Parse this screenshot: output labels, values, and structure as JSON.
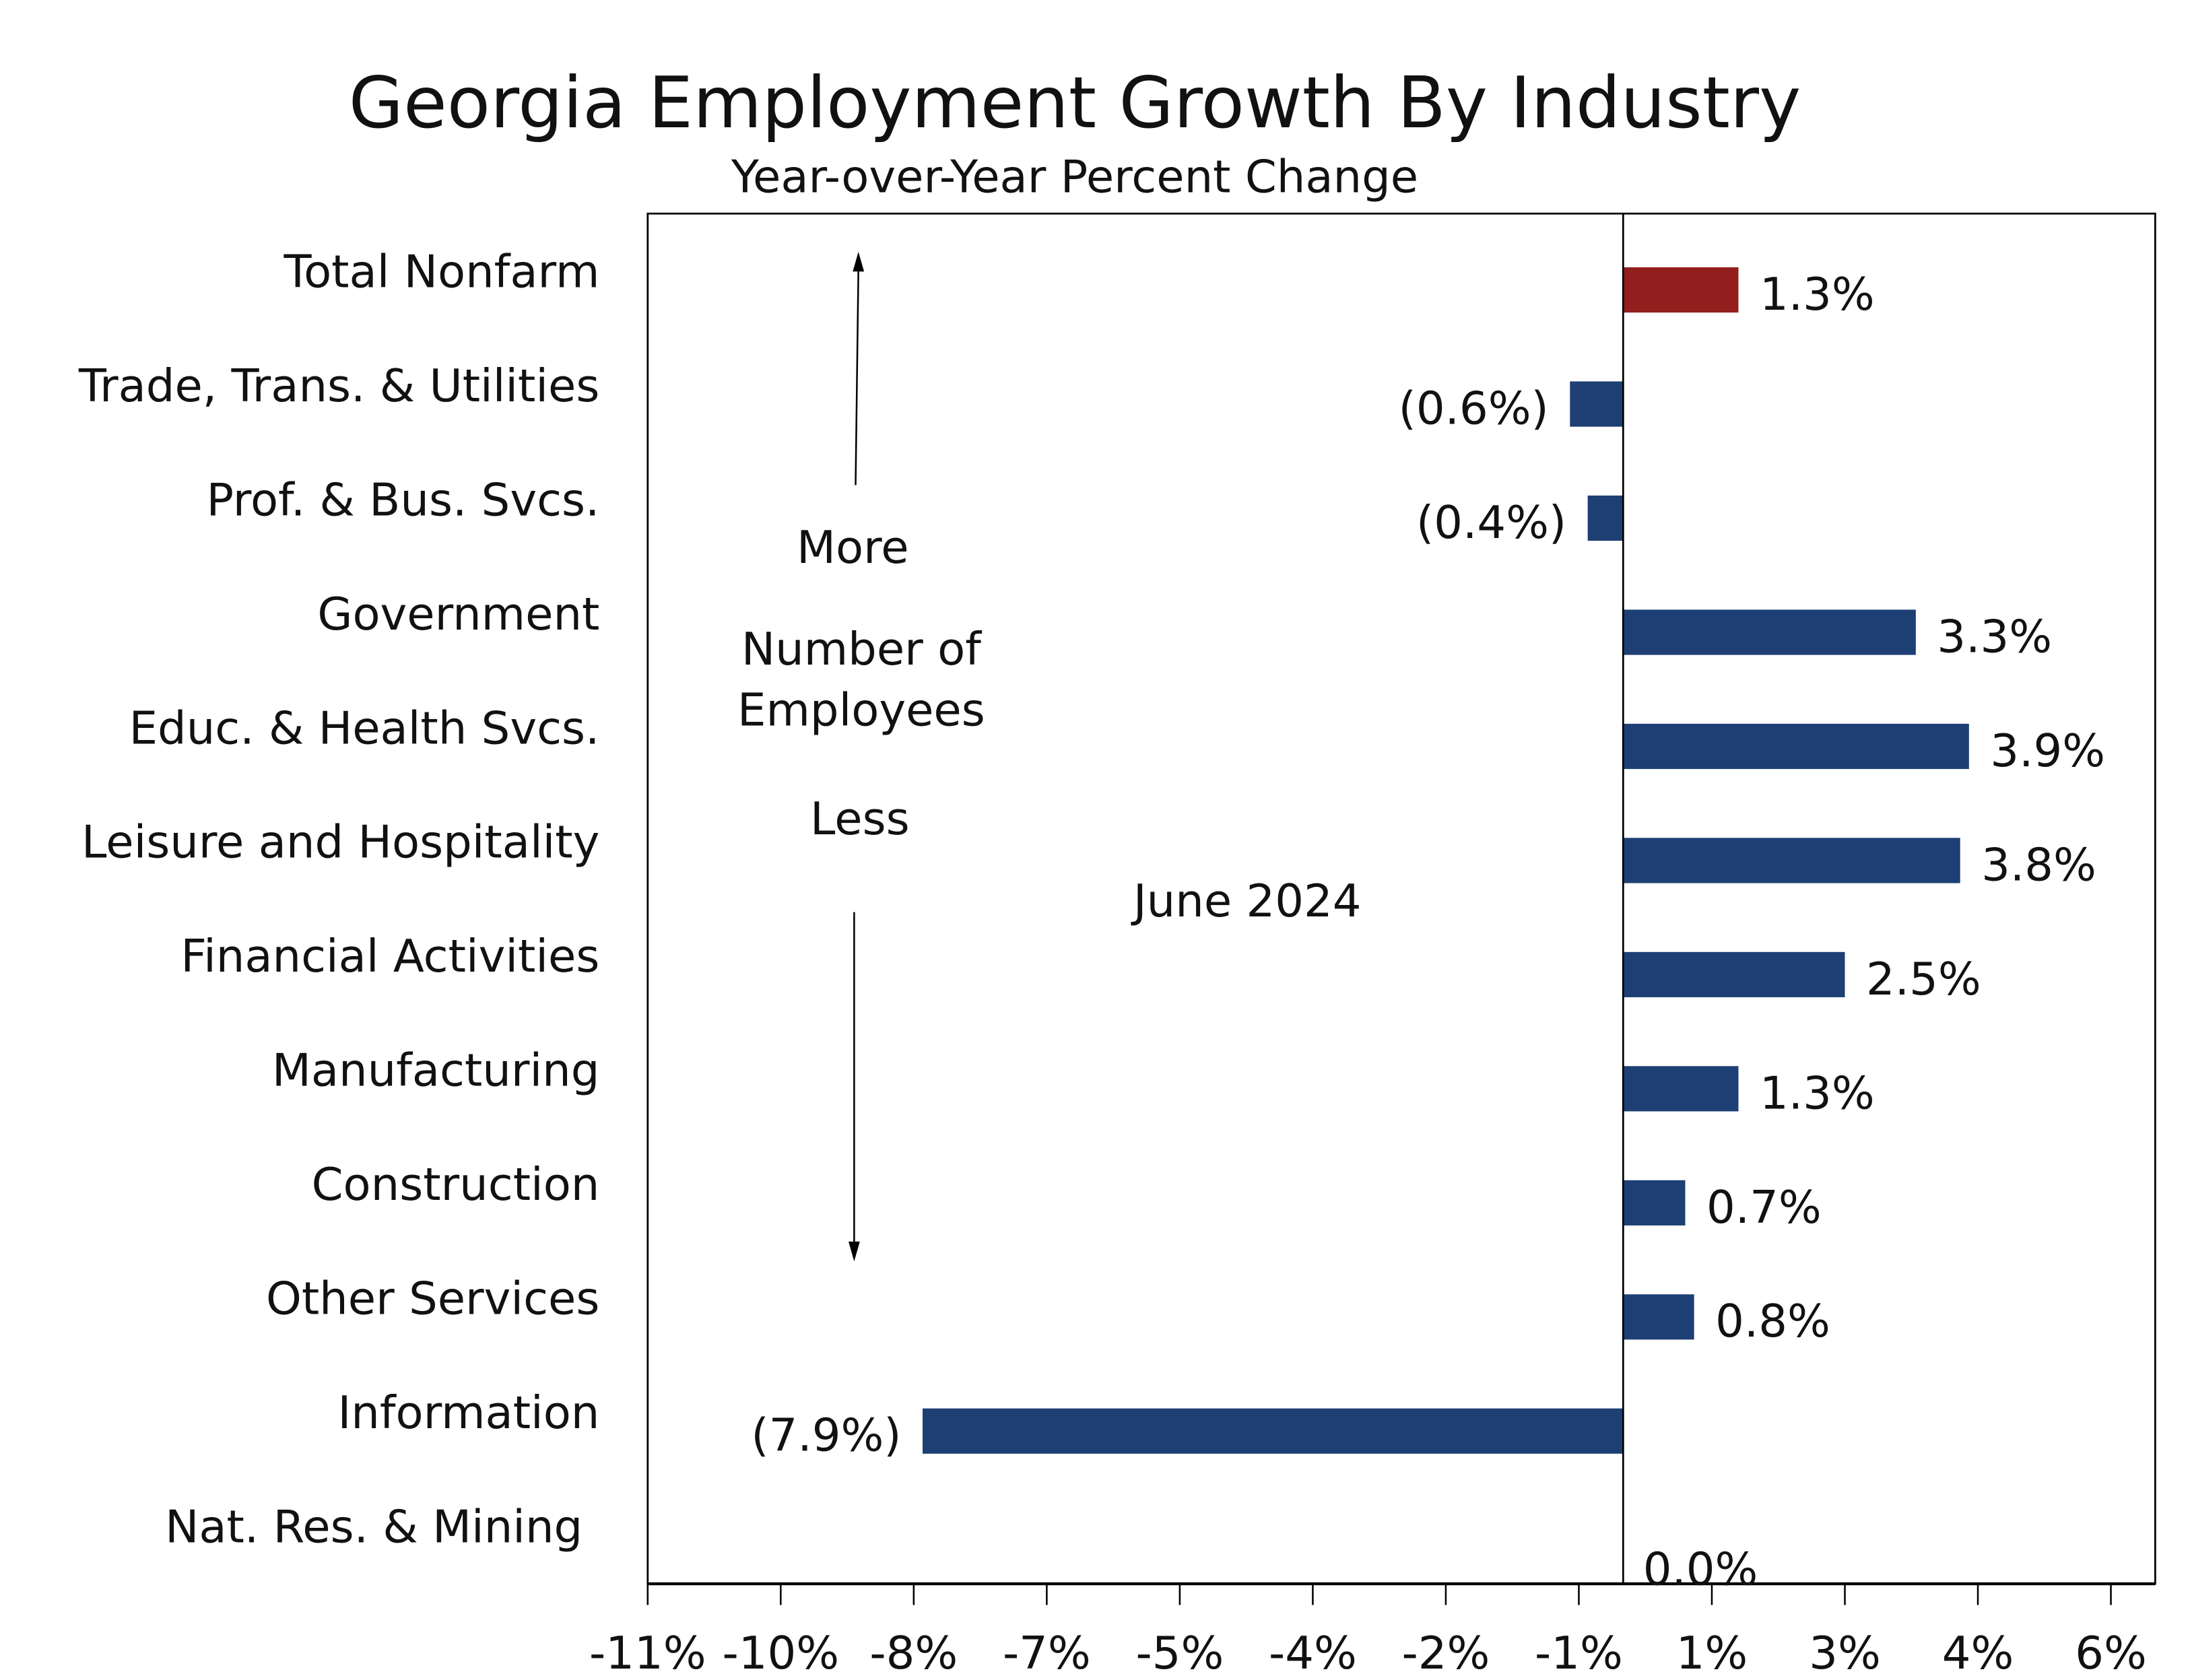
{
  "chart_data": {
    "type": "bar",
    "orientation": "horizontal",
    "title": "Georgia Employment Growth By Industry",
    "subtitle": "Year-over-Year Percent Change",
    "categories": [
      "Total Nonfarm",
      "Trade, Trans. & Utilities",
      "Prof. & Bus. Svcs.",
      "Government",
      "Educ. & Health Svcs.",
      "Leisure and Hospitality",
      "Financial Activities",
      "Manufacturing",
      "Construction",
      "Other Services",
      "Information",
      "Nat. Res. & Mining"
    ],
    "values": [
      1.3,
      -0.6,
      -0.4,
      3.3,
      3.9,
      3.8,
      2.5,
      1.3,
      0.7,
      0.8,
      -7.9,
      0.0
    ],
    "data_labels": [
      "1.3%",
      "(0.6%)",
      "(0.4%)",
      "3.3%",
      "3.9%",
      "3.8%",
      "2.5%",
      "1.3%",
      "0.7%",
      "0.8%",
      "(7.9%)",
      "0.0%"
    ],
    "bar_colors": [
      "#931e1e",
      "#1d3f73",
      "#1d3f73",
      "#1d3f73",
      "#1d3f73",
      "#1d3f73",
      "#1d3f73",
      "#1d3f73",
      "#1d3f73",
      "#1d3f73",
      "#1d3f73",
      "#1d3f73"
    ],
    "xlim": [
      -11,
      6
    ],
    "x_ticks": [
      -11,
      -9.5,
      -8,
      -6.5,
      -5,
      -3.5,
      -2,
      -0.5,
      1,
      2.5,
      4,
      5.5
    ],
    "x_tick_labels": [
      "-11%",
      "-10%",
      "-8%",
      "-7%",
      "-5%",
      "-4%",
      "-2%",
      "-1%",
      "1%",
      "3%",
      "4%",
      "6%"
    ],
    "xlabel": "",
    "ylabel": "",
    "grid": false,
    "annotations": {
      "more": "More",
      "number_of": "Number of",
      "employees": "Employees",
      "less": "Less",
      "date": "June 2024"
    }
  }
}
